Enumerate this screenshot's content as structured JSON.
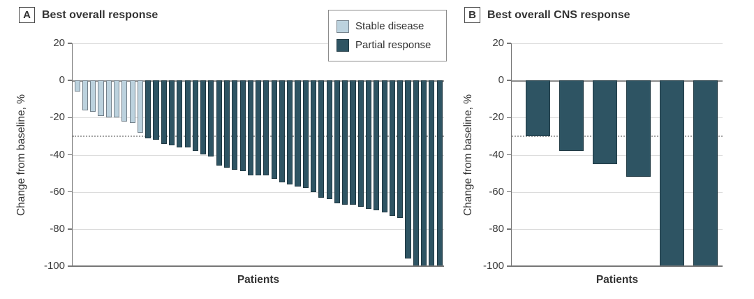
{
  "panel_a": {
    "label": "A",
    "title": "Best overall response",
    "ylabel": "Change from baseline, %",
    "xlabel": "Patients"
  },
  "panel_b": {
    "label": "B",
    "title": "Best overall CNS response",
    "ylabel": "Change from baseline, %",
    "xlabel": "Patients"
  },
  "legend": {
    "items": [
      {
        "label": "Stable disease",
        "color": "#bcd2de"
      },
      {
        "label": "Partial response",
        "color": "#2e5463"
      }
    ]
  },
  "colors": {
    "stable_disease_fill": "#bcd2de",
    "partial_response_fill": "#2e5463",
    "axis_gray": "#767676",
    "gridline_gray": "#dcdcdc",
    "reference_line_gray": "#a3a3a3"
  },
  "chart_data": [
    {
      "type": "bar",
      "panel": "A",
      "title": "Best overall response",
      "xlabel": "Patients",
      "ylabel": "Change from baseline, %",
      "ylim": [
        -100,
        20
      ],
      "yticks": [
        20,
        0,
        -20,
        -40,
        -60,
        -80,
        -100
      ],
      "reference_line_y": -30,
      "grid": true,
      "legend_position": "top-right",
      "bar_order_note": "waterfall, sorted by decreasing change from baseline",
      "series": [
        {
          "name": "Stable disease",
          "color": "#bcd2de",
          "values": [
            -6,
            -16,
            -17,
            -19,
            -20,
            -20,
            -22,
            -23,
            -28
          ]
        },
        {
          "name": "Partial response",
          "color": "#2e5463",
          "values": [
            -31,
            -32,
            -34,
            -35,
            -36,
            -36,
            -38,
            -40,
            -41,
            -46,
            -47,
            -48,
            -49,
            -51,
            -51,
            -51,
            -53,
            -55,
            -56,
            -57,
            -58,
            -60,
            -63,
            -64,
            -66,
            -67,
            -67,
            -68,
            -69,
            -70,
            -71,
            -73,
            -74,
            -96,
            -100,
            -100,
            -100,
            -100
          ]
        }
      ]
    },
    {
      "type": "bar",
      "panel": "B",
      "title": "Best overall CNS response",
      "xlabel": "Patients",
      "ylabel": "Change from baseline, %",
      "ylim": [
        -100,
        20
      ],
      "yticks": [
        20,
        0,
        -20,
        -40,
        -60,
        -80,
        -100
      ],
      "reference_line_y": -30,
      "grid": true,
      "series": [
        {
          "name": "Partial response",
          "color": "#2e5463",
          "values": [
            -30,
            -38,
            -45,
            -52,
            -100,
            -100
          ]
        }
      ]
    }
  ]
}
